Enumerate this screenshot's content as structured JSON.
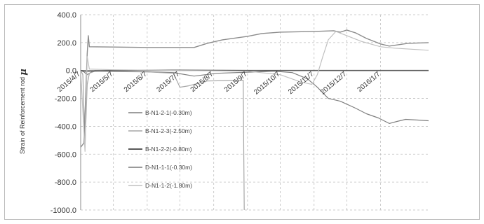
{
  "chart_data": {
    "type": "line",
    "title": "",
    "ylabel": "Strain of Reinforcement rod",
    "ylabel_symbol": "μ",
    "ylim": [
      -1000,
      400
    ],
    "yticks": [
      400,
      200,
      0,
      -200,
      -400,
      -600,
      -800,
      -1000
    ],
    "ytick_labels": [
      "400.0",
      "200.0",
      "0.0",
      "-200.0",
      "-400.0",
      "-600.0",
      "-800.0",
      "-1000.0"
    ],
    "xlim": [
      "2015-04-07",
      "2016-02-20"
    ],
    "xticks": [
      "2015-04-07",
      "2015-05-07",
      "2015-06-07",
      "2015-07-07",
      "2015-08-07",
      "2015-09-07",
      "2015-10-07",
      "2015-11-07",
      "2015-12-07",
      "2016-01-07"
    ],
    "xtick_labels": [
      "2015/4/7",
      "2015/5/7",
      "2015/6/7",
      "2015/7/7",
      "2015/8/7",
      "2015/9/7",
      "2015/10/7",
      "2015/11/7",
      "2015/12/7",
      "2016/1/7"
    ],
    "grid": true,
    "legend_position": "center-left",
    "series": [
      {
        "name": "B-N1-2-1(-0.30m)",
        "color": "#7f7f7f",
        "width": 1.2,
        "points": [
          [
            "2015-04-07",
            0
          ],
          [
            "2015-04-10",
            -10
          ],
          [
            "2015-04-13",
            -30
          ],
          [
            "2015-04-16",
            -15
          ],
          [
            "2015-04-20",
            0
          ],
          [
            "2015-05-07",
            -5
          ],
          [
            "2015-06-07",
            -10
          ],
          [
            "2015-07-01",
            -15
          ],
          [
            "2015-07-20",
            -40
          ],
          [
            "2015-08-10",
            -20
          ],
          [
            "2015-09-07",
            -12
          ],
          [
            "2015-10-01",
            -5
          ],
          [
            "2015-10-18",
            -15
          ],
          [
            "2015-11-01",
            -60
          ],
          [
            "2015-11-10",
            -120
          ],
          [
            "2015-11-20",
            -200
          ],
          [
            "2015-12-01",
            -220
          ],
          [
            "2015-12-15",
            -270
          ],
          [
            "2015-12-25",
            -310
          ],
          [
            "2016-01-05",
            -340
          ],
          [
            "2016-01-15",
            -380
          ],
          [
            "2016-01-22",
            -365
          ],
          [
            "2016-01-30",
            -350
          ],
          [
            "2016-02-10",
            -355
          ],
          [
            "2016-02-20",
            -360
          ]
        ]
      },
      {
        "name": "B-N1-2-3(-2.50m)",
        "color": "#a6a6a6",
        "width": 1.2,
        "points": [
          [
            "2015-04-07",
            0
          ],
          [
            "2015-04-09",
            -30
          ],
          [
            "2015-04-11",
            -550
          ],
          [
            "2015-04-13",
            -100
          ],
          [
            "2015-04-15",
            -20
          ],
          [
            "2015-04-20",
            -5
          ],
          [
            "2015-05-07",
            -8
          ],
          [
            "2015-06-07",
            -10
          ],
          [
            "2015-07-01",
            -20
          ],
          [
            "2015-07-07",
            -120
          ],
          [
            "2015-07-15",
            -110
          ],
          [
            "2015-08-01",
            -75
          ],
          [
            "2015-08-20",
            -72
          ],
          [
            "2015-09-03",
            -70
          ],
          [
            "2015-09-04",
            -1000
          ]
        ]
      },
      {
        "name": "B-N1-2-2(-0.80m)",
        "color": "#595959",
        "width": 1.6,
        "points": [
          [
            "2015-04-07",
            0
          ],
          [
            "2015-04-12",
            -5
          ],
          [
            "2015-05-07",
            0
          ],
          [
            "2015-07-01",
            2
          ],
          [
            "2015-09-07",
            0
          ],
          [
            "2015-12-07",
            0
          ],
          [
            "2016-02-20",
            0
          ]
        ]
      },
      {
        "name": "D-N1-1-1(-0.30m)",
        "color": "#8c8c8c",
        "width": 1.4,
        "points": [
          [
            "2015-04-07",
            -550
          ],
          [
            "2015-04-10",
            -520
          ],
          [
            "2015-04-13",
            120
          ],
          [
            "2015-04-14",
            250
          ],
          [
            "2015-04-15",
            170
          ],
          [
            "2015-05-07",
            168
          ],
          [
            "2015-06-07",
            165
          ],
          [
            "2015-07-07",
            165
          ],
          [
            "2015-07-20",
            165
          ],
          [
            "2015-08-01",
            195
          ],
          [
            "2015-08-15",
            220
          ],
          [
            "2015-09-07",
            245
          ],
          [
            "2015-09-20",
            265
          ],
          [
            "2015-10-07",
            275
          ],
          [
            "2015-11-07",
            280
          ],
          [
            "2015-11-25",
            285
          ],
          [
            "2015-12-01",
            275
          ],
          [
            "2015-12-07",
            290
          ],
          [
            "2015-12-15",
            270
          ],
          [
            "2015-12-25",
            230
          ],
          [
            "2016-01-07",
            190
          ],
          [
            "2016-01-15",
            175
          ],
          [
            "2016-02-01",
            195
          ],
          [
            "2016-02-20",
            200
          ]
        ]
      },
      {
        "name": "D-N1-1-2(-1.80m)",
        "color": "#c0c0c0",
        "width": 1.2,
        "points": [
          [
            "2015-04-07",
            0
          ],
          [
            "2015-04-11",
            -580
          ],
          [
            "2015-04-13",
            100
          ],
          [
            "2015-04-15",
            10
          ],
          [
            "2015-05-07",
            5
          ],
          [
            "2015-07-07",
            0
          ],
          [
            "2015-09-07",
            -5
          ],
          [
            "2015-10-07",
            -30
          ],
          [
            "2015-10-25",
            -80
          ],
          [
            "2015-11-05",
            -100
          ],
          [
            "2015-11-10",
            -30
          ],
          [
            "2015-11-15",
            100
          ],
          [
            "2015-11-20",
            220
          ],
          [
            "2015-11-27",
            280
          ],
          [
            "2015-12-07",
            250
          ],
          [
            "2015-12-20",
            210
          ],
          [
            "2016-01-07",
            170
          ],
          [
            "2016-01-20",
            160
          ],
          [
            "2016-02-20",
            145
          ]
        ]
      }
    ]
  }
}
